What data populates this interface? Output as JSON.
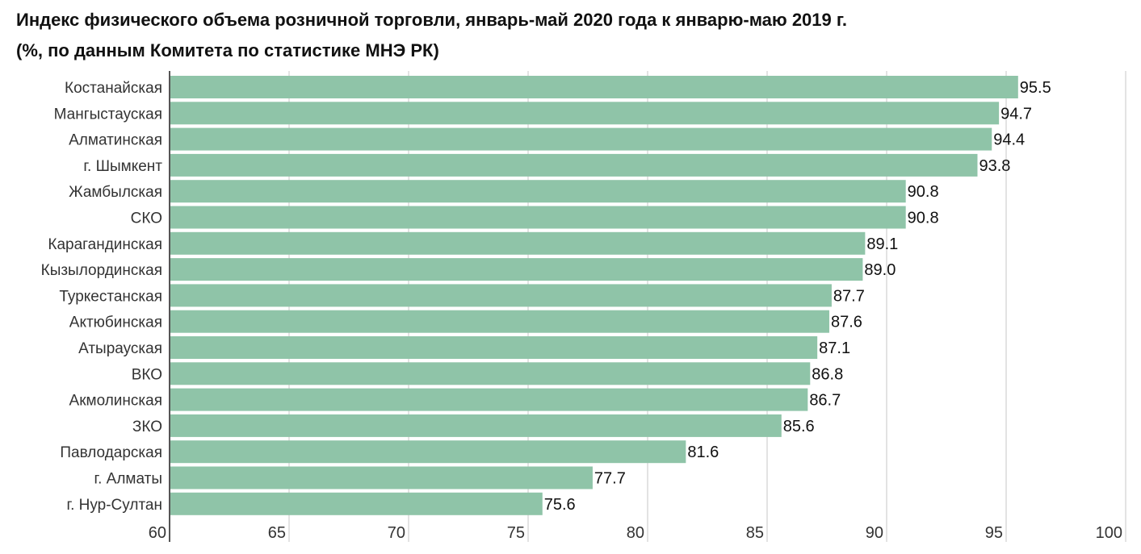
{
  "chart_data": {
    "type": "bar",
    "orientation": "horizontal",
    "title": "Индекс физического объема розничной торговли, январь-май 2020 года к январю-маю 2019 г.",
    "subtitle": "(%, по данным Комитета по статистике МНЭ РК)",
    "categories": [
      "Костанайская",
      "Мангыстауская",
      "Алматинская",
      "г. Шымкент",
      "Жамбылская",
      "СКО",
      "Карагандинская",
      "Кызылординская",
      "Туркестанская",
      "Актюбинская",
      "Атырауская",
      "ВКО",
      "Акмолинская",
      "ЗКО",
      "Павлодарская",
      "г. Алматы",
      "г. Нур-Султан"
    ],
    "values": [
      95.5,
      94.7,
      94.4,
      93.8,
      90.8,
      90.8,
      89.1,
      89.0,
      87.7,
      87.6,
      87.1,
      86.8,
      86.7,
      85.6,
      81.6,
      77.7,
      75.6
    ],
    "value_labels": [
      "95.5",
      "94.7",
      "94.4",
      "93.8",
      "90.8",
      "90.8",
      "89.1",
      "89.0",
      "87.7",
      "87.6",
      "87.1",
      "86.8",
      "86.7",
      "85.6",
      "81.6",
      "77.7",
      "75.6"
    ],
    "xlim": [
      60,
      100
    ],
    "xticks": [
      "60",
      "65",
      "70",
      "75",
      "80",
      "85",
      "90",
      "95",
      "100"
    ],
    "grid": true,
    "bar_color": "#8fc4a8"
  }
}
